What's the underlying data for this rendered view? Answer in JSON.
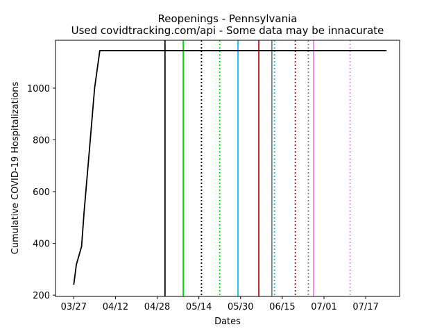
{
  "chart_data": {
    "type": "line",
    "title": "Reopenings - Pennsylvania",
    "subtitle": "Used covidtracking.com/api - Some data may be innacurate",
    "xlabel": "Dates",
    "ylabel": "Cumulative COVID-19 Hospitalizations",
    "x_axis_type": "date",
    "xlim": [
      "2020-03-20",
      "2020-07-30"
    ],
    "ylim": [
      195,
      1185
    ],
    "xticks": [
      "2020-03-27",
      "2020-04-12",
      "2020-04-28",
      "2020-05-14",
      "2020-05-30",
      "2020-06-15",
      "2020-07-01",
      "2020-07-17"
    ],
    "xtick_labels": [
      "03/27",
      "04/12",
      "04/28",
      "05/14",
      "05/30",
      "06/15",
      "07/01",
      "07/17"
    ],
    "yticks": [
      200,
      400,
      600,
      800,
      1000
    ],
    "grid": false,
    "legend": false,
    "series": [
      {
        "color": "#000000",
        "points": [
          {
            "x": "2020-03-27",
            "y": 240
          },
          {
            "x": "2020-03-28",
            "y": 318
          },
          {
            "x": "2020-03-30",
            "y": 388
          },
          {
            "x": "2020-03-31",
            "y": 525
          },
          {
            "x": "2020-04-02",
            "y": 760
          },
          {
            "x": "2020-04-04",
            "y": 1000
          },
          {
            "x": "2020-04-06",
            "y": 1145
          },
          {
            "x": "2020-07-25",
            "y": 1145
          }
        ]
      }
    ],
    "vertical_lines": [
      {
        "x": "2020-05-01",
        "color": "#000000",
        "style": "solid"
      },
      {
        "x": "2020-05-08",
        "color": "#00dd00",
        "style": "solid"
      },
      {
        "x": "2020-05-15",
        "color": "#000000",
        "style": "dotted"
      },
      {
        "x": "2020-05-22",
        "color": "#00dd00",
        "style": "dotted"
      },
      {
        "x": "2020-05-29",
        "color": "#00bfff",
        "style": "solid"
      },
      {
        "x": "2020-06-06",
        "color": "#cc0000",
        "style": "solid"
      },
      {
        "x": "2020-06-11",
        "color": "#808080",
        "style": "solid"
      },
      {
        "x": "2020-06-12",
        "color": "#00bfff",
        "style": "dotted"
      },
      {
        "x": "2020-06-20",
        "color": "#cc0000",
        "style": "dotted"
      },
      {
        "x": "2020-06-25",
        "color": "#808080",
        "style": "dotted"
      },
      {
        "x": "2020-06-27",
        "color": "#ee82ee",
        "style": "solid"
      },
      {
        "x": "2020-07-11",
        "color": "#ee82ee",
        "style": "dotted"
      }
    ]
  }
}
